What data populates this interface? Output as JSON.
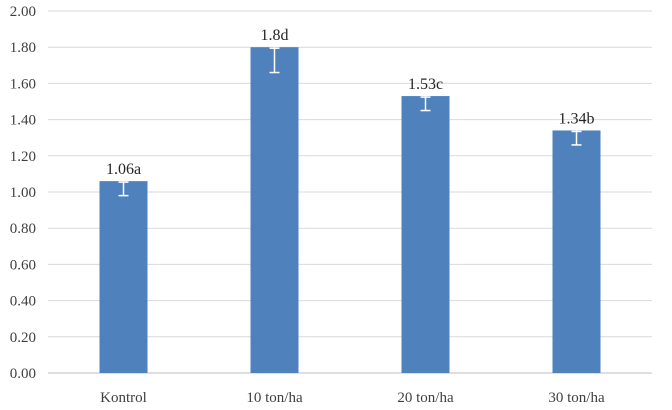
{
  "chart_data": {
    "type": "bar",
    "categories": [
      "Kontrol",
      "10 ton/ha",
      "20 ton/ha",
      "30 ton/ha"
    ],
    "values": [
      1.06,
      1.8,
      1.53,
      1.34
    ],
    "error_low": [
      0.08,
      0.14,
      0.08,
      0.08
    ],
    "error_high": [
      0.0,
      0.0,
      0.0,
      0.0
    ],
    "data_labels": [
      "1.06a",
      "1.8d",
      "1.53c",
      "1.34b"
    ],
    "ylim": [
      0,
      2.0
    ],
    "yticks": [
      "0.00",
      "0.20",
      "0.40",
      "0.60",
      "0.80",
      "1.00",
      "1.20",
      "1.40",
      "1.60",
      "1.80",
      "2.00"
    ],
    "grid": true,
    "title": "",
    "xlabel": "",
    "ylabel": "",
    "colors": {
      "bar": "#4f81bd",
      "error_bar": "#ffffff",
      "grid": "#d9d9d9",
      "axis": "#bfbfbf"
    }
  }
}
